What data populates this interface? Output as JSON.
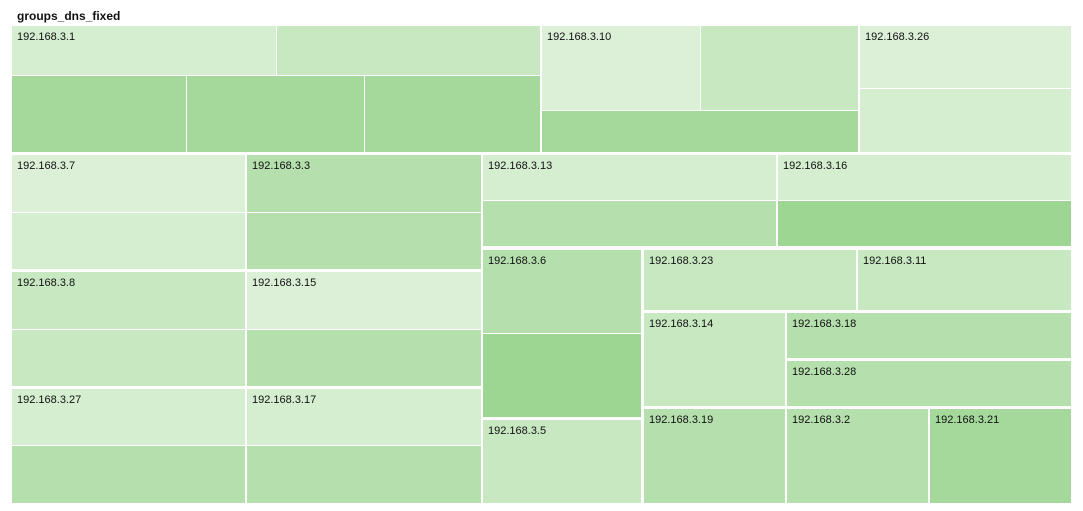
{
  "chart_data": {
    "type": "treemap",
    "title": "groups_dns_fixed",
    "groups": [
      {
        "name": "192.168.3.1",
        "cells": 5
      },
      {
        "name": "192.168.3.10",
        "cells": 3
      },
      {
        "name": "192.168.3.26",
        "cells": 2
      },
      {
        "name": "192.168.3.7",
        "cells": 2
      },
      {
        "name": "192.168.3.3",
        "cells": 2
      },
      {
        "name": "192.168.3.13",
        "cells": 2
      },
      {
        "name": "192.168.3.16",
        "cells": 2
      },
      {
        "name": "192.168.3.8",
        "cells": 2
      },
      {
        "name": "192.168.3.15",
        "cells": 2
      },
      {
        "name": "192.168.3.27",
        "cells": 2
      },
      {
        "name": "192.168.3.17",
        "cells": 2
      },
      {
        "name": "192.168.3.6",
        "cells": 2
      },
      {
        "name": "192.168.3.23",
        "cells": 1
      },
      {
        "name": "192.168.3.11",
        "cells": 1
      },
      {
        "name": "192.168.3.14",
        "cells": 1
      },
      {
        "name": "192.168.3.18",
        "cells": 1
      },
      {
        "name": "192.168.3.28",
        "cells": 1
      },
      {
        "name": "192.168.3.5",
        "cells": 1
      },
      {
        "name": "192.168.3.19",
        "cells": 1
      },
      {
        "name": "192.168.3.2",
        "cells": 1
      },
      {
        "name": "192.168.3.21",
        "cells": 1
      }
    ],
    "colors": [
      "#dcf0d8",
      "#d4eecf",
      "#c8e8c2",
      "#b5e0ad",
      "#a5d99c",
      "#9dd693"
    ]
  }
}
